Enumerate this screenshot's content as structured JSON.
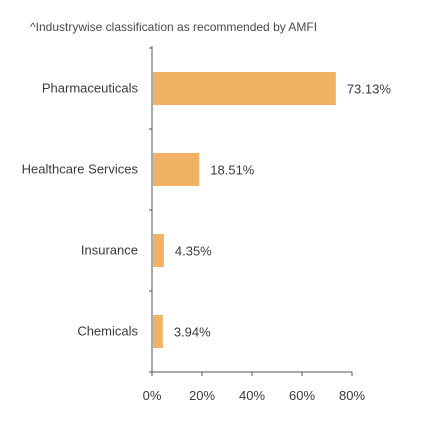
{
  "note": "^Industrywise classification as recommended by AMFI",
  "colors": {
    "bar": "#F1B266",
    "axis": "#555555"
  },
  "chart_data": {
    "type": "bar",
    "orientation": "horizontal",
    "categories": [
      "Pharmaceuticals",
      "Healthcare Services",
      "Insurance",
      "Chemicals"
    ],
    "values": [
      73.13,
      18.51,
      4.35,
      3.94
    ],
    "value_labels": [
      "73.13%",
      "18.51%",
      "4.35%",
      "3.94%"
    ],
    "title": "",
    "xlabel": "",
    "ylabel": "",
    "xlim": [
      0,
      80
    ],
    "x_ticks": [
      0,
      20,
      40,
      60,
      80
    ],
    "x_tick_labels": [
      "0%",
      "20%",
      "40%",
      "60%",
      "80%"
    ],
    "grid": false,
    "legend": "none"
  }
}
